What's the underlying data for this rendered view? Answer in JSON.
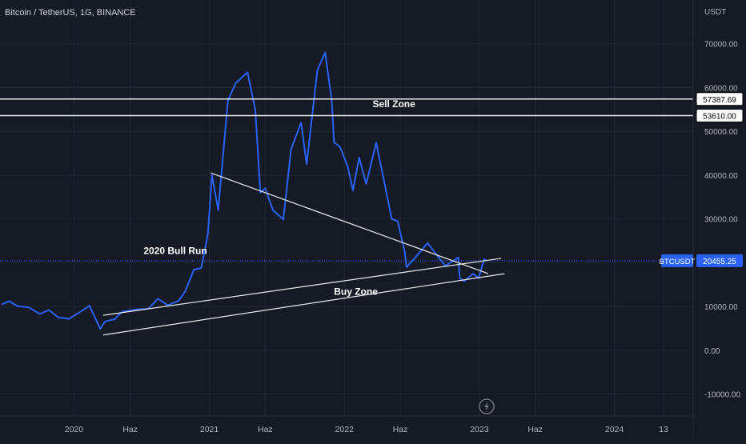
{
  "header": {
    "symbol_title": "Bitcoin / TetherUS, 1G, BINANCE"
  },
  "price_axis": {
    "currency": "USDT"
  },
  "colors": {
    "background": "#161a25",
    "grid": "#222733",
    "price_line": "#2962ff",
    "label_bg": "#2962ff",
    "drawing": "#e8eaed",
    "axis_text": "#b2b5be",
    "dotted_line": "#2962ff"
  },
  "icons": {
    "replay": "lightning-bolt-icon"
  },
  "chart_data": {
    "type": "line",
    "title": "",
    "xlabel": "",
    "ylabel": "",
    "x_tick_labels": [
      "2020",
      "Haz",
      "2021",
      "Haz",
      "2022",
      "Haz",
      "2023",
      "Haz",
      "2024",
      "13"
    ],
    "x_tick_dates": [
      "2020-01-01",
      "2020-06-01",
      "2021-01-01",
      "2021-06-01",
      "2022-01-01",
      "2022-06-01",
      "2023-01-01",
      "2023-06-01",
      "2024-01-01",
      "2024-05-13"
    ],
    "y_ticks": [
      "-10000.00",
      "0.00",
      "10000.00",
      "20000.00",
      "30000.00",
      "40000.00",
      "50000.00",
      "60000.00",
      "70000.00"
    ],
    "ylim": [
      -15000,
      80000
    ],
    "xlim": [
      "2019-06-15",
      "2024-08-01"
    ],
    "grid": true,
    "series": [
      {
        "name": "BTCUSDT",
        "x": [
          "2019-06-20",
          "2019-07-10",
          "2019-08-01",
          "2019-09-01",
          "2019-10-01",
          "2019-10-25",
          "2019-11-20",
          "2019-12-18",
          "2020-01-15",
          "2020-02-12",
          "2020-03-12",
          "2020-03-25",
          "2020-04-20",
          "2020-05-10",
          "2020-06-15",
          "2020-07-20",
          "2020-08-15",
          "2020-09-10",
          "2020-10-10",
          "2020-10-28",
          "2020-11-20",
          "2020-12-10",
          "2020-12-28",
          "2021-01-08",
          "2021-01-25",
          "2021-02-20",
          "2021-03-13",
          "2021-04-14",
          "2021-05-05",
          "2021-05-19",
          "2021-06-01",
          "2021-06-22",
          "2021-07-20",
          "2021-08-10",
          "2021-09-06",
          "2021-09-21",
          "2021-10-20",
          "2021-11-10",
          "2021-11-28",
          "2021-12-04",
          "2021-12-20",
          "2022-01-10",
          "2022-01-24",
          "2022-02-10",
          "2022-03-01",
          "2022-03-28",
          "2022-04-15",
          "2022-05-09",
          "2022-05-25",
          "2022-06-13",
          "2022-06-18",
          "2022-07-10",
          "2022-08-14",
          "2022-09-10",
          "2022-10-01",
          "2022-11-05",
          "2022-11-09",
          "2022-11-21",
          "2022-12-15",
          "2022-12-30",
          "2023-01-14",
          "2023-01-20"
        ],
        "values": [
          10500,
          11200,
          10100,
          9800,
          8300,
          9200,
          7500,
          7200,
          8600,
          10200,
          4900,
          6600,
          7100,
          8800,
          9300,
          9500,
          11800,
          10300,
          11300,
          13500,
          18400,
          18800,
          26500,
          40000,
          32000,
          57000,
          61000,
          63500,
          55000,
          36000,
          37000,
          32000,
          29900,
          46000,
          52000,
          42500,
          64000,
          68000,
          57000,
          47500,
          46500,
          42000,
          36500,
          44000,
          38000,
          47400,
          40000,
          30000,
          29500,
          22500,
          19000,
          21000,
          24500,
          21500,
          19300,
          21200,
          16500,
          15800,
          17500,
          16500,
          20800,
          20455
        ]
      }
    ],
    "last_price": {
      "symbol": "BTCUSDT",
      "value": 20455.25
    },
    "horizontal_levels": [
      57387.69,
      53610.0
    ],
    "trendlines": [
      {
        "from": [
          "2021-01-05",
          40500
        ],
        "to": [
          "2023-01-25",
          17500
        ]
      },
      {
        "from": [
          "2020-03-20",
          8000
        ],
        "to": [
          "2023-03-01",
          21000
        ]
      },
      {
        "from": [
          "2020-03-20",
          3500
        ],
        "to": [
          "2023-03-10",
          17500
        ]
      }
    ],
    "annotations": [
      {
        "text": "Sell Zone",
        "x": "2022-05-15",
        "y": 55500
      },
      {
        "text": "2020 Bull Run",
        "x": "2020-10-01",
        "y": 22000
      },
      {
        "text": "Buy Zone",
        "x": "2022-02-01",
        "y": 12700
      }
    ]
  }
}
